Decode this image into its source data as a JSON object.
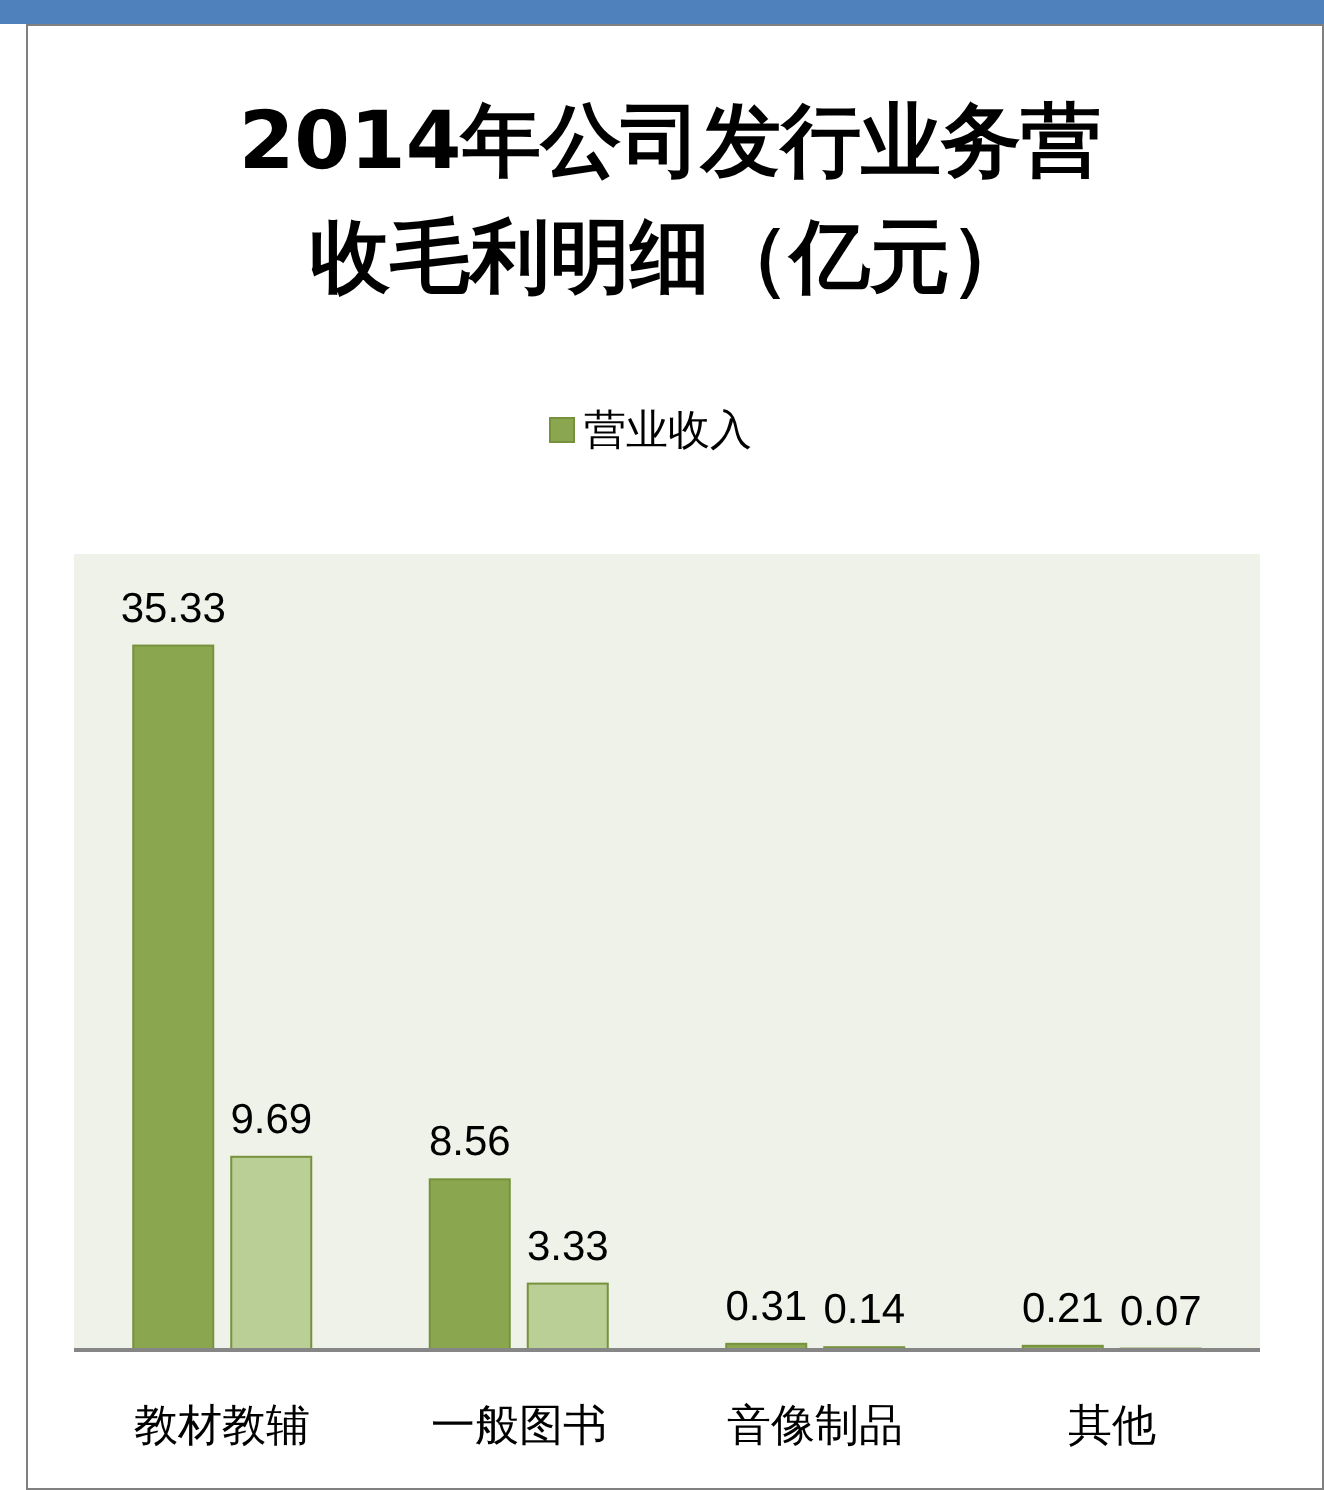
{
  "chart_data": {
    "type": "bar",
    "title": "2014年公司发行业务营收毛利明细（亿元）",
    "categories": [
      "教材教辅",
      "一般图书",
      "音像制品",
      "其他"
    ],
    "series": [
      {
        "name": "营业收入",
        "color": "#8aa64e",
        "values": [
          35.33,
          8.56,
          0.31,
          0.21
        ]
      },
      {
        "color": "#b9cf96",
        "values": [
          9.69,
          3.33,
          0.14,
          0.07
        ]
      }
    ],
    "data_labels": true,
    "legend": "top"
  }
}
